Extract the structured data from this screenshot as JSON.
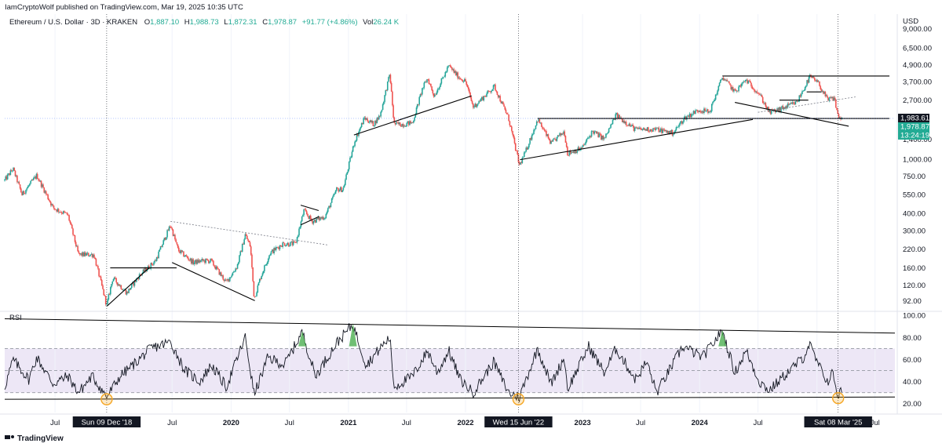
{
  "publisher_line": "IamCryptoWolf published on TradingView.com, Mar 19, 2025 10:35 UTC",
  "symbol_line": {
    "name": "Ethereum / U.S. Dollar · 3D · KRAKEN",
    "o_label": "O",
    "o_value": "1,887.10",
    "h_label": "H",
    "h_value": "1,988.73",
    "l_label": "L",
    "l_value": "1,872.31",
    "c_label": "C",
    "c_value": "1,978.87",
    "change": "+91.77 (+4.86%)",
    "vol_label": "Vol",
    "vol_value": "26.24 K"
  },
  "currency": "USD",
  "rsi_label": "RSI",
  "brand": "TradingView",
  "colors": {
    "up": "#26a69a",
    "down": "#ef5350",
    "line": "#000000",
    "rsi_band": "#ede7f6",
    "dark_badge": "#131722",
    "teal_badge": "#22ab94",
    "circle": "#f5a623",
    "grid": "#e0e3eb"
  },
  "price_badges": [
    {
      "value": "1,983.61",
      "style": "dark"
    },
    {
      "value": "1,978.87",
      "style": "teal"
    },
    {
      "value": "13:24:19",
      "style": "teal"
    }
  ],
  "date_badges": [
    "Sun 09 Dec '18",
    "Wed 15 Jun '22",
    "Sat 08 Mar '25"
  ],
  "chart_data": [
    {
      "type": "candlestick",
      "title": "Ethereum / U.S. Dollar · 3D · KRAKEN",
      "y_scale": "log",
      "ylim": [
        80,
        11500
      ],
      "y_ticks": [
        "9,000.00",
        "6,500.00",
        "4,900.00",
        "3,700.00",
        "2,700.00",
        "1,400.00",
        "1,000.00",
        "750.00",
        "550.00",
        "400.00",
        "300.00",
        "220.00",
        "160.00",
        "120.00",
        "92.00"
      ],
      "y_tick_values": [
        9000,
        6500,
        4900,
        3700,
        2700,
        1400,
        1000,
        750,
        550,
        400,
        300,
        220,
        160,
        120,
        92
      ],
      "x_range": [
        "2018-01-25",
        "2025-09-01"
      ],
      "x_ticks": [
        {
          "label": "Jul",
          "date": "2018-07-01",
          "bold": false
        },
        {
          "label": "Jul",
          "date": "2019-07-01",
          "bold": false
        },
        {
          "label": "2020",
          "date": "2020-01-01",
          "bold": true
        },
        {
          "label": "Jul",
          "date": "2020-07-01",
          "bold": false
        },
        {
          "label": "2021",
          "date": "2021-01-01",
          "bold": true
        },
        {
          "label": "Jul",
          "date": "2021-07-01",
          "bold": false
        },
        {
          "label": "2022",
          "date": "2022-01-01",
          "bold": true
        },
        {
          "label": "2023",
          "date": "2023-01-01",
          "bold": true
        },
        {
          "label": "Jul",
          "date": "2023-07-01",
          "bold": false
        },
        {
          "label": "2024",
          "date": "2024-01-01",
          "bold": true
        },
        {
          "label": "Jul",
          "date": "2024-07-01",
          "bold": false
        },
        {
          "label": "2",
          "date": "2025-01-01",
          "bold": true
        },
        {
          "label": "Jul",
          "date": "2025-07-01",
          "bold": false
        }
      ],
      "price_anchors": [
        [
          "2018-01-25",
          700
        ],
        [
          "2018-02-20",
          850
        ],
        [
          "2018-03-20",
          550
        ],
        [
          "2018-05-05",
          760
        ],
        [
          "2018-06-25",
          440
        ],
        [
          "2018-08-10",
          390
        ],
        [
          "2018-09-12",
          200
        ],
        [
          "2018-10-30",
          200
        ],
        [
          "2018-12-09",
          85
        ],
        [
          "2018-12-28",
          135
        ],
        [
          "2019-02-10",
          105
        ],
        [
          "2019-03-20",
          140
        ],
        [
          "2019-05-10",
          180
        ],
        [
          "2019-06-26",
          330
        ],
        [
          "2019-07-20",
          215
        ],
        [
          "2019-09-05",
          175
        ],
        [
          "2019-10-01",
          180
        ],
        [
          "2019-10-30",
          180
        ],
        [
          "2019-12-17",
          125
        ],
        [
          "2020-01-20",
          165
        ],
        [
          "2020-02-14",
          280
        ],
        [
          "2020-03-01",
          230
        ],
        [
          "2020-03-13",
          95
        ],
        [
          "2020-04-01",
          135
        ],
        [
          "2020-05-01",
          205
        ],
        [
          "2020-06-10",
          240
        ],
        [
          "2020-07-20",
          240
        ],
        [
          "2020-08-15",
          420
        ],
        [
          "2020-09-10",
          350
        ],
        [
          "2020-10-20",
          380
        ],
        [
          "2020-11-25",
          600
        ],
        [
          "2020-12-15",
          600
        ],
        [
          "2021-01-20",
          1350
        ],
        [
          "2021-02-20",
          2000
        ],
        [
          "2021-03-20",
          1800
        ],
        [
          "2021-04-10",
          2100
        ],
        [
          "2021-05-10",
          4200
        ],
        [
          "2021-05-23",
          1800
        ],
        [
          "2021-06-22",
          1800
        ],
        [
          "2021-07-20",
          1850
        ],
        [
          "2021-08-20",
          3300
        ],
        [
          "2021-09-05",
          3900
        ],
        [
          "2021-09-25",
          2900
        ],
        [
          "2021-11-10",
          4800
        ],
        [
          "2021-12-10",
          4000
        ],
        [
          "2022-01-01",
          3700
        ],
        [
          "2022-01-25",
          2400
        ],
        [
          "2022-04-01",
          3400
        ],
        [
          "2022-05-15",
          2000
        ],
        [
          "2022-06-18",
          900
        ],
        [
          "2022-07-05",
          1100
        ],
        [
          "2022-08-14",
          1950
        ],
        [
          "2022-09-25",
          1300
        ],
        [
          "2022-11-05",
          1600
        ],
        [
          "2022-11-15",
          1100
        ],
        [
          "2022-12-30",
          1200
        ],
        [
          "2023-02-01",
          1600
        ],
        [
          "2023-03-10",
          1400
        ],
        [
          "2023-04-15",
          2100
        ],
        [
          "2023-06-15",
          1650
        ],
        [
          "2023-08-20",
          1650
        ],
        [
          "2023-10-10",
          1550
        ],
        [
          "2023-11-15",
          2000
        ],
        [
          "2023-12-30",
          2300
        ],
        [
          "2024-02-01",
          2200
        ],
        [
          "2024-03-12",
          4000
        ],
        [
          "2024-04-20",
          3100
        ],
        [
          "2024-05-25",
          3800
        ],
        [
          "2024-07-05",
          3000
        ],
        [
          "2024-08-05",
          2200
        ],
        [
          "2024-09-06",
          2300
        ],
        [
          "2024-10-30",
          2600
        ],
        [
          "2024-12-10",
          4000
        ],
        [
          "2025-01-05",
          3600
        ],
        [
          "2025-02-03",
          2700
        ],
        [
          "2025-02-24",
          2800
        ],
        [
          "2025-03-08",
          2050
        ],
        [
          "2025-03-19",
          1979
        ]
      ],
      "trendlines": [
        {
          "label": "support 2018",
          "points": [
            [
              "2018-12-10",
              84
            ],
            [
              "2019-04-20",
              160
            ]
          ]
        },
        {
          "label": "resistance 2019 horizontal",
          "points": [
            [
              "2018-12-20",
              160
            ],
            [
              "2019-07-15",
              160
            ]
          ]
        },
        {
          "label": "2019-2020 falling support",
          "points": [
            [
              "2019-07-01",
              175
            ],
            [
              "2020-03-15",
              92
            ]
          ]
        },
        {
          "label": "2019-2020 dotted resistance",
          "points": [
            [
              "2019-06-26",
              350
            ],
            [
              "2020-10-30",
              235
            ]
          ],
          "dotted": true
        },
        {
          "label": "2020 flag top",
          "points": [
            [
              "2020-08-05",
              460
            ],
            [
              "2020-09-30",
              420
            ]
          ]
        },
        {
          "label": "2020 flag bottom",
          "points": [
            [
              "2020-08-05",
              330
            ],
            [
              "2020-10-01",
              380
            ]
          ]
        },
        {
          "label": "2021 rising support",
          "points": [
            [
              "2021-01-18",
              1500
            ],
            [
              "2022-01-20",
              2900
            ]
          ]
        },
        {
          "label": "2022-2024 rising support",
          "points": [
            [
              "2022-06-20",
              990
            ],
            [
              "2024-06-15",
              1950
            ]
          ]
        },
        {
          "label": "horizontal 1983",
          "points": [
            [
              "2022-08-14",
              1983
            ],
            [
              "2025-08-15",
              1983
            ]
          ]
        },
        {
          "label": "2024 top resistance",
          "points": [
            [
              "2024-03-12",
              4050
            ],
            [
              "2025-08-15",
              4050
            ]
          ]
        },
        {
          "label": "2024 falling line",
          "points": [
            [
              "2024-04-20",
              2600
            ],
            [
              "2025-04-10",
              1740
            ]
          ]
        },
        {
          "label": "dotted rising",
          "points": [
            [
              "2024-07-01",
              2200
            ],
            [
              "2025-05-01",
              2850
            ]
          ],
          "dotted": true
        },
        {
          "label": "box 2024-2025",
          "points": [
            [
              "2024-09-06",
              2700
            ],
            [
              "2024-12-05",
              2700
            ]
          ]
        },
        {
          "label": "box top",
          "points": [
            [
              "2024-11-30",
              3100
            ],
            [
              "2025-01-15",
              3100
            ]
          ]
        }
      ]
    },
    {
      "type": "line",
      "title": "RSI",
      "ylim": [
        12,
        103
      ],
      "y_ticks": [
        "100.00",
        "80.00",
        "60.00",
        "40.00",
        "20.00"
      ],
      "y_tick_values": [
        100,
        80,
        60,
        40,
        20
      ],
      "overbought": 70,
      "oversold": 30,
      "midline": 50,
      "trendlines": [
        {
          "points": [
            [
              "2018-01-25",
              97
            ],
            [
              "2025-09-01",
              84
            ]
          ]
        },
        {
          "points": [
            [
              "2018-01-25",
              24
            ],
            [
              "2025-09-01",
              26
            ]
          ]
        }
      ],
      "rsi_anchors": [
        [
          "2018-01-25",
          35
        ],
        [
          "2018-02-20",
          60
        ],
        [
          "2018-04-10",
          42
        ],
        [
          "2018-05-05",
          62
        ],
        [
          "2018-06-25",
          38
        ],
        [
          "2018-08-10",
          45
        ],
        [
          "2018-09-12",
          30
        ],
        [
          "2018-10-25",
          45
        ],
        [
          "2018-12-09",
          26
        ],
        [
          "2019-01-20",
          45
        ],
        [
          "2019-03-01",
          55
        ],
        [
          "2019-04-25",
          70
        ],
        [
          "2019-06-26",
          76
        ],
        [
          "2019-08-10",
          50
        ],
        [
          "2019-09-25",
          40
        ],
        [
          "2019-11-01",
          55
        ],
        [
          "2019-12-17",
          35
        ],
        [
          "2020-02-14",
          80
        ],
        [
          "2020-03-13",
          28
        ],
        [
          "2020-04-25",
          62
        ],
        [
          "2020-06-15",
          55
        ],
        [
          "2020-08-10",
          85
        ],
        [
          "2020-09-20",
          45
        ],
        [
          "2020-11-25",
          75
        ],
        [
          "2021-01-15",
          92
        ],
        [
          "2021-02-25",
          55
        ],
        [
          "2021-04-15",
          72
        ],
        [
          "2021-05-10",
          80
        ],
        [
          "2021-05-23",
          35
        ],
        [
          "2021-07-20",
          45
        ],
        [
          "2021-09-05",
          68
        ],
        [
          "2021-10-05",
          48
        ],
        [
          "2021-11-10",
          68
        ],
        [
          "2021-12-15",
          42
        ],
        [
          "2022-01-25",
          30
        ],
        [
          "2022-03-30",
          58
        ],
        [
          "2022-05-15",
          30
        ],
        [
          "2022-06-18",
          26
        ],
        [
          "2022-08-14",
          70
        ],
        [
          "2022-09-25",
          38
        ],
        [
          "2022-11-05",
          62
        ],
        [
          "2022-11-15",
          33
        ],
        [
          "2023-01-20",
          72
        ],
        [
          "2023-03-10",
          48
        ],
        [
          "2023-04-15",
          70
        ],
        [
          "2023-06-15",
          42
        ],
        [
          "2023-07-20",
          58
        ],
        [
          "2023-08-20",
          30
        ],
        [
          "2023-11-10",
          72
        ],
        [
          "2024-01-10",
          62
        ],
        [
          "2024-03-12",
          86
        ],
        [
          "2024-04-20",
          48
        ],
        [
          "2024-05-25",
          68
        ],
        [
          "2024-07-05",
          40
        ],
        [
          "2024-08-05",
          32
        ],
        [
          "2024-09-20",
          45
        ],
        [
          "2024-11-20",
          62
        ],
        [
          "2024-12-08",
          74
        ],
        [
          "2025-01-05",
          55
        ],
        [
          "2025-02-03",
          40
        ],
        [
          "2025-02-20",
          48
        ],
        [
          "2025-03-08",
          26
        ],
        [
          "2025-03-19",
          33
        ]
      ]
    }
  ]
}
